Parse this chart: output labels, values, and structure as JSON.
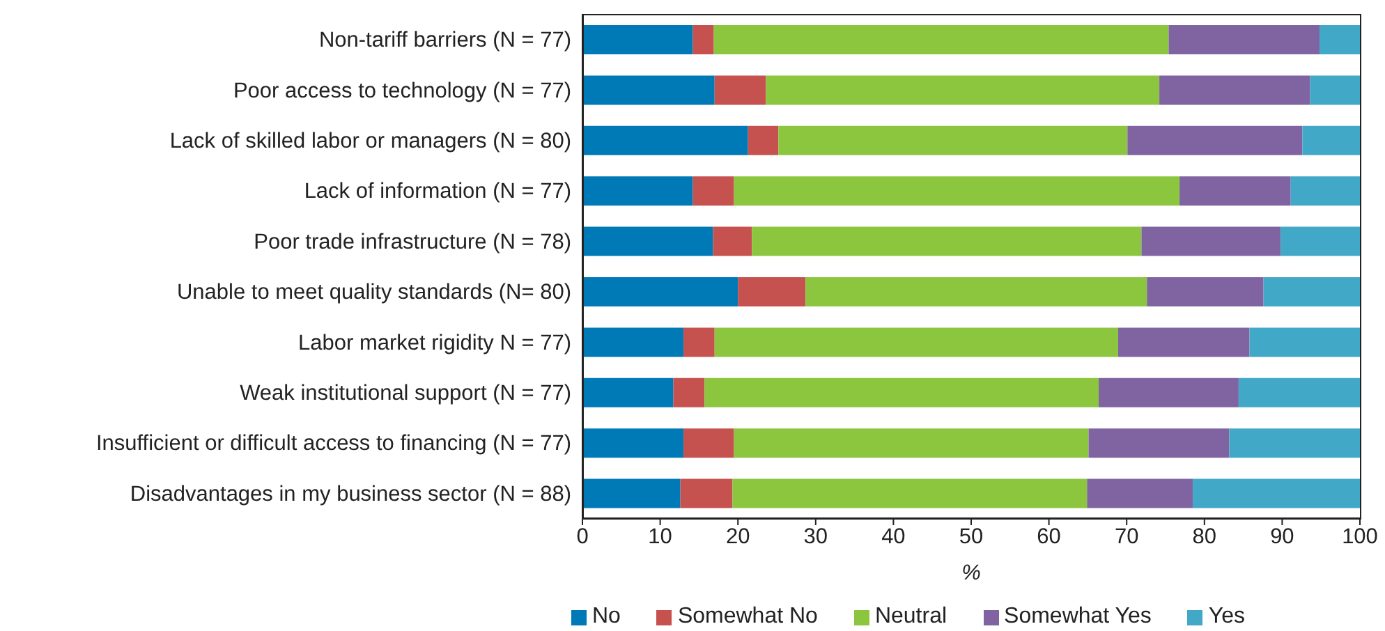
{
  "chart_data": {
    "type": "bar",
    "orientation": "horizontal",
    "stacked": true,
    "xlabel": "%",
    "categories": [
      "Non-tariff barriers (N = 77)",
      "Poor access to technology (N = 77)",
      "Lack of skilled labor or managers (N = 80)",
      "Lack of information (N = 77)",
      "Poor trade infrastructure (N = 78)",
      "Unable to meet quality standards (N= 80)",
      "Labor market rigidity N = 77)",
      "Weak institutional support (N = 77)",
      "Insufficient or difficult access to financing (N = 77)",
      "Disadvantages in my business sector (N = 88)"
    ],
    "series": [
      {
        "name": "No",
        "color": "#0079b7",
        "values": [
          14.2,
          17.0,
          21.3,
          14.2,
          16.8,
          20.0,
          13.0,
          11.7,
          13.0,
          12.6
        ]
      },
      {
        "name": "Somewhat No",
        "color": "#c5524f",
        "values": [
          2.7,
          6.6,
          3.9,
          5.3,
          5.0,
          8.7,
          4.0,
          4.0,
          6.5,
          6.7
        ]
      },
      {
        "name": "Neutral",
        "color": "#8cc63e",
        "values": [
          58.5,
          50.6,
          44.9,
          57.3,
          50.1,
          43.9,
          51.9,
          50.7,
          45.6,
          45.6
        ]
      },
      {
        "name": "Somewhat Yes",
        "color": "#8064a2",
        "values": [
          19.4,
          19.4,
          22.5,
          14.3,
          17.9,
          15.0,
          16.9,
          18.0,
          18.1,
          13.6
        ]
      },
      {
        "name": "Yes",
        "color": "#41a8c7",
        "values": [
          5.2,
          6.4,
          7.4,
          8.9,
          10.2,
          12.4,
          14.2,
          15.6,
          16.8,
          21.5
        ]
      }
    ],
    "xlim": [
      0,
      100
    ],
    "xticks": [
      0,
      10,
      20,
      30,
      40,
      50,
      60,
      70,
      80,
      90,
      100
    ],
    "grid": false,
    "legend": "bottom"
  }
}
